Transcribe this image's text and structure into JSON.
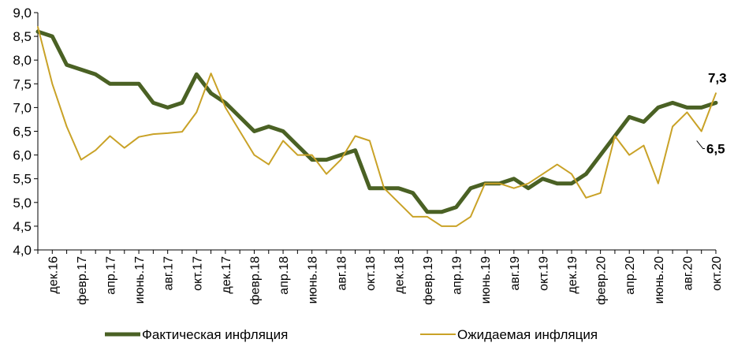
{
  "chart_data": {
    "type": "line",
    "title": "",
    "xlabel": "",
    "ylabel": "",
    "ylim": [
      4.0,
      9.0
    ],
    "y_ticks": [
      "4,0",
      "4,5",
      "5,0",
      "5,5",
      "6,0",
      "6,5",
      "7,0",
      "7,5",
      "8,0",
      "8,5",
      "9,0"
    ],
    "y_tick_values": [
      4.0,
      4.5,
      5.0,
      5.5,
      6.0,
      6.5,
      7.0,
      7.5,
      8.0,
      8.5,
      9.0
    ],
    "grid": false,
    "legend_position": "bottom",
    "x_tick_labels": [
      "дек.16",
      "февр.17",
      "апр.17",
      "июнь.17",
      "авг.17",
      "окт.17",
      "дек.17",
      "февр.18",
      "апр.18",
      "июнь.18",
      "авг.18",
      "окт.18",
      "дек.18",
      "февр.19",
      "апр.19",
      "июнь.19",
      "авг.19",
      "окт.19",
      "дек.19",
      "февр.20",
      "апр.20",
      "июнь.20",
      "авг.20",
      "окт.20"
    ],
    "series": [
      {
        "name": "Фактическая инфляция",
        "color": "#4a6124",
        "values": [
          8.6,
          8.5,
          7.9,
          7.8,
          7.7,
          7.5,
          7.5,
          7.5,
          7.1,
          7.0,
          7.1,
          7.7,
          7.3,
          7.1,
          6.8,
          6.5,
          6.6,
          6.5,
          6.2,
          5.9,
          5.9,
          6.0,
          6.1,
          5.3,
          5.3,
          5.3,
          5.2,
          4.8,
          4.8,
          4.9,
          5.3,
          5.4,
          5.4,
          5.5,
          5.3,
          5.5,
          5.4,
          5.4,
          5.6,
          6.0,
          6.4,
          6.8,
          6.7,
          7.0,
          7.1,
          7.0,
          7.0,
          7.1
        ]
      },
      {
        "name": "Ожидаемая инфляция",
        "color": "#c9a227",
        "values": [
          8.7,
          7.5,
          6.6,
          5.9,
          6.1,
          6.4,
          6.15,
          6.38,
          6.44,
          6.46,
          6.49,
          6.9,
          7.72,
          7.0,
          6.5,
          6.0,
          5.8,
          6.3,
          6.0,
          6.0,
          5.6,
          5.9,
          6.4,
          6.3,
          5.3,
          5.0,
          4.7,
          4.7,
          4.5,
          4.5,
          4.7,
          5.4,
          5.4,
          5.3,
          5.4,
          5.6,
          5.8,
          5.6,
          5.1,
          5.2,
          6.4,
          6.0,
          6.2,
          5.4,
          6.6,
          6.9,
          6.5,
          7.3
        ]
      }
    ],
    "annotations": [
      {
        "text": "7,3",
        "series": "Ожидаемая инфляция"
      },
      {
        "text": "6,5"
      }
    ]
  },
  "legend": {
    "actual_label": "Фактическая инфляция",
    "expected_label": "Ожидаемая инфляция"
  }
}
